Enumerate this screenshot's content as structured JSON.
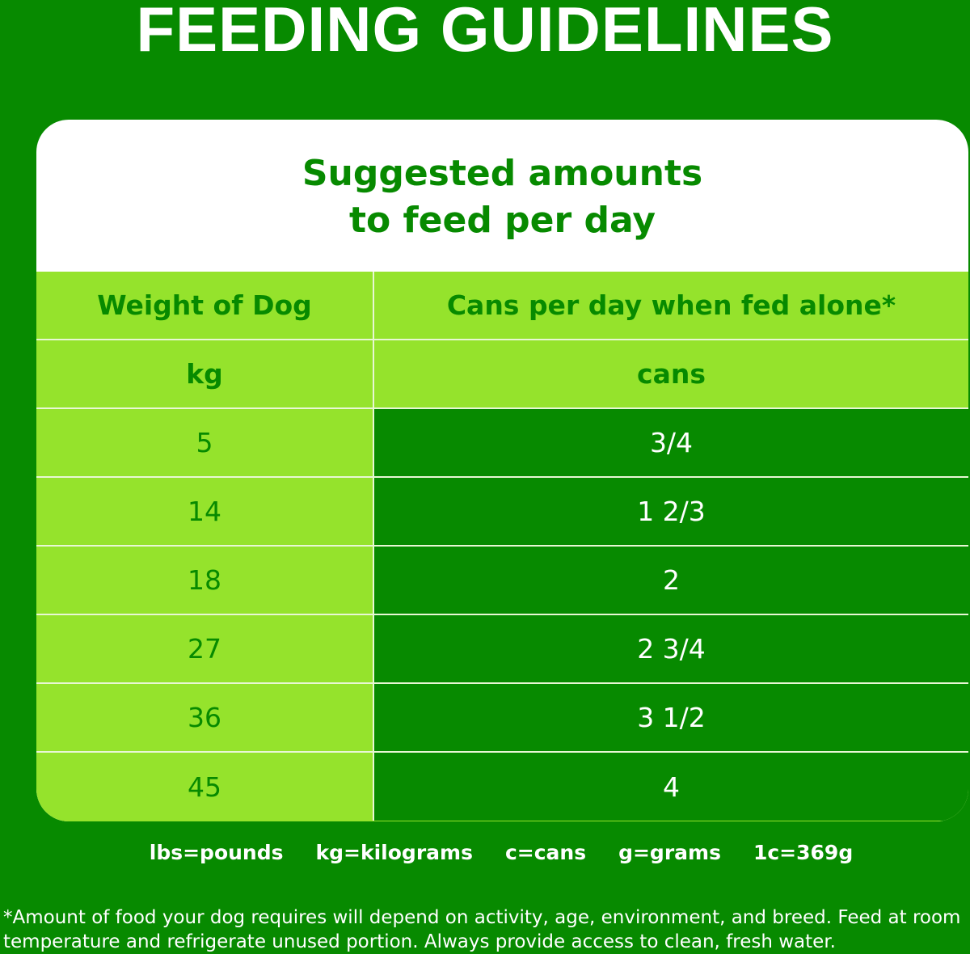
{
  "title": "FEEDING GUIDELINES",
  "card": {
    "heading_line1": "Suggested amounts",
    "heading_line2": "to feed per day"
  },
  "table": {
    "col1_header": "Weight of Dog",
    "col2_header": "Cans per day when fed alone*",
    "col1_unit": "kg",
    "col2_unit": "cans",
    "rows": [
      {
        "kg": "5",
        "cans": "3/4"
      },
      {
        "kg": "14",
        "cans": "1 2/3"
      },
      {
        "kg": "18",
        "cans": "2"
      },
      {
        "kg": "27",
        "cans": "2 3/4"
      },
      {
        "kg": "36",
        "cans": "3 1/2"
      },
      {
        "kg": "45",
        "cans": "4"
      }
    ]
  },
  "legend": [
    "lbs=pounds",
    "kg=kilograms",
    "c=cans",
    "g=grams",
    "1c=369g"
  ],
  "footnote": "*Amount of food your dog requires will depend on activity, age, environment, and breed. Feed at room temperature and refrigerate unused portion. Always provide access to clean, fresh water.",
  "colors": {
    "background": "#078a00",
    "light_green": "#95e32c",
    "text_white": "#ffffff"
  }
}
